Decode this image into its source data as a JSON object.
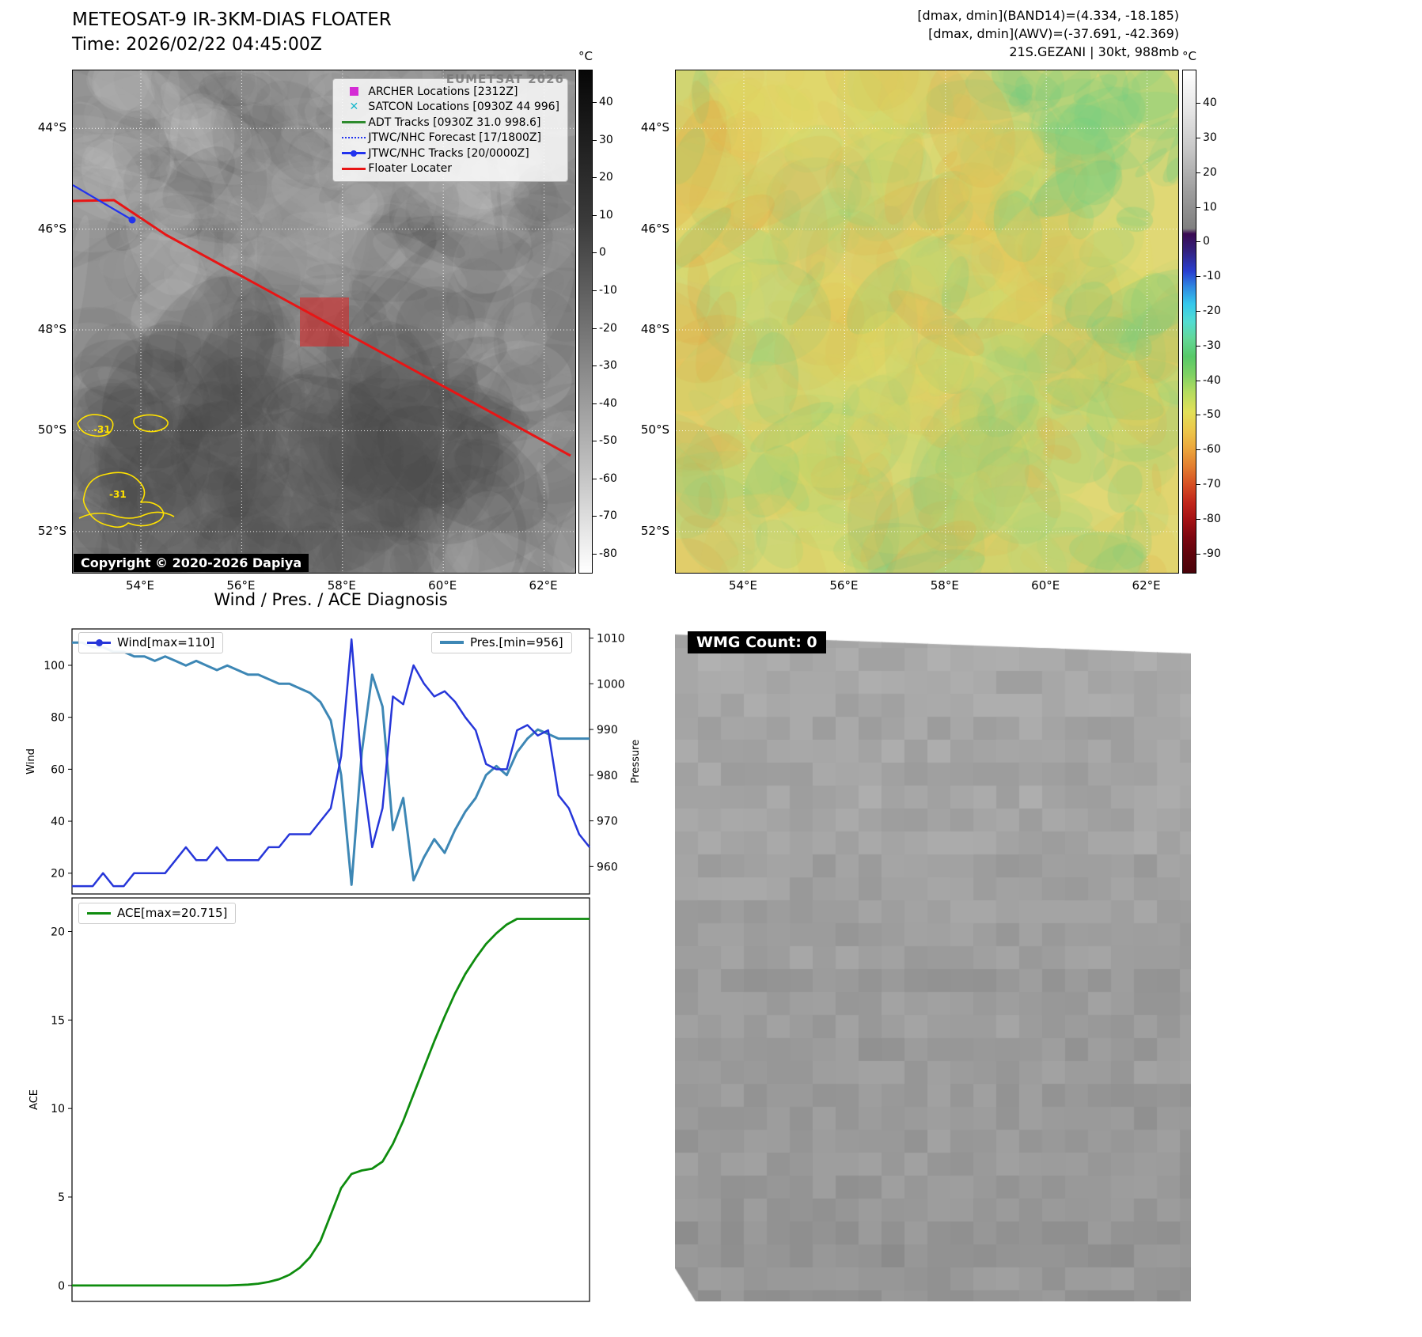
{
  "ir_panel": {
    "title": "METEOSAT-9 IR-3KM-DIAS FLOATER",
    "time_line": "Time: 2026/02/22 04:45:00Z",
    "watermark": "EUMETSAT 2026",
    "copyright": "Copyright © 2020-2026 Dapiya",
    "colorbar_unit": "°C",
    "colorbar_ticks": [
      "40",
      "30",
      "20",
      "10",
      "0",
      "-10",
      "-20",
      "-30",
      "-40",
      "-50",
      "-60",
      "-70",
      "-80"
    ],
    "lat_ticks": [
      "44°S",
      "46°S",
      "48°S",
      "50°S",
      "52°S"
    ],
    "lon_ticks": [
      "54°E",
      "56°E",
      "58°E",
      "60°E",
      "62°E"
    ],
    "contour_labels": [
      "-31",
      "-31"
    ],
    "contour_color": "#ffe100",
    "legend": [
      {
        "label": "ARCHER Locations [2312Z]",
        "marker": "square",
        "color": "#d42bd4"
      },
      {
        "label": "SATCON Locations [0930Z 44 996]",
        "marker": "x",
        "color": "#1ab8cc"
      },
      {
        "label": "ADT Tracks [0930Z 31.0 998.6]",
        "marker": "line",
        "color": "#2e8b2e"
      },
      {
        "label": "JTWC/NHC Forecast [17/1800Z]",
        "marker": "dotted",
        "color": "#2233ee"
      },
      {
        "label": "JTWC/NHC Tracks [20/0000Z]",
        "marker": "line-dot",
        "color": "#2233ee"
      },
      {
        "label": "Floater Locater",
        "marker": "line",
        "color": "#e81515"
      }
    ]
  },
  "awv_panel": {
    "header_lines": [
      "[dmax, dmin](BAND14)=(4.334, -18.185)",
      "[dmax, dmin](AWV)=(-37.691, -42.369)",
      "21S.GEZANI | 30kt, 988mb"
    ],
    "colorbar_unit": "°C",
    "colorbar_ticks": [
      "40",
      "30",
      "20",
      "10",
      "0",
      "-10",
      "-20",
      "-30",
      "-40",
      "-50",
      "-60",
      "-70",
      "-80",
      "-90"
    ],
    "lat_ticks": [
      "44°S",
      "46°S",
      "48°S",
      "50°S",
      "52°S"
    ],
    "lon_ticks": [
      "54°E",
      "56°E",
      "58°E",
      "60°E",
      "62°E"
    ]
  },
  "diagnosis": {
    "title": "Wind / Pres. / ACE Diagnosis"
  },
  "wmg_panel": {
    "label": "WMG Count: 0"
  },
  "chart_data": [
    {
      "type": "line",
      "title": "Wind / Pres. / ACE Diagnosis",
      "legend_position": "top",
      "grid": false,
      "series": [
        {
          "name": "Wind[max=110]",
          "yaxis": "left",
          "ylabel": "Wind",
          "yticks": [
            20,
            40,
            60,
            80,
            100
          ],
          "ylim": [
            12,
            114
          ],
          "color": "#2636d9",
          "values": [
            15,
            15,
            15,
            20,
            15,
            15,
            20,
            20,
            20,
            20,
            25,
            30,
            25,
            25,
            30,
            25,
            25,
            25,
            25,
            30,
            30,
            35,
            35,
            35,
            40,
            45,
            65,
            110,
            60,
            30,
            45,
            88,
            85,
            100,
            93,
            88,
            90,
            86,
            80,
            75,
            62,
            60,
            60,
            75,
            77,
            73,
            75,
            50,
            45,
            35,
            30
          ]
        },
        {
          "name": "Pres.[min=956]",
          "yaxis": "right",
          "ylabel": "Pressure",
          "yticks": [
            960,
            970,
            980,
            990,
            1000,
            1010
          ],
          "ylim": [
            954,
            1012
          ],
          "color": "#3d87b5",
          "values": [
            1009,
            1009,
            1008,
            1008,
            1007,
            1007,
            1006,
            1006,
            1005,
            1006,
            1005,
            1004,
            1005,
            1004,
            1003,
            1004,
            1003,
            1002,
            1002,
            1001,
            1000,
            1000,
            999,
            998,
            996,
            992,
            980,
            956,
            985,
            1002,
            995,
            968,
            975,
            957,
            962,
            966,
            963,
            968,
            972,
            975,
            980,
            982,
            980,
            985,
            988,
            990,
            989,
            988,
            988,
            988,
            988
          ]
        }
      ]
    },
    {
      "type": "line",
      "grid": false,
      "series": [
        {
          "name": "ACE[max=20.715]",
          "yaxis": "left",
          "ylabel": "ACE",
          "yticks": [
            0,
            5,
            10,
            15,
            20
          ],
          "ylim": [
            -0.9,
            21.9
          ],
          "color": "#0e8c0e",
          "values": [
            0,
            0,
            0,
            0,
            0,
            0,
            0,
            0,
            0,
            0,
            0,
            0,
            0,
            0,
            0,
            0,
            0.02,
            0.05,
            0.1,
            0.2,
            0.35,
            0.6,
            1.0,
            1.6,
            2.5,
            4.0,
            5.5,
            6.3,
            6.5,
            6.6,
            7.0,
            8.0,
            9.3,
            10.8,
            12.3,
            13.8,
            15.2,
            16.5,
            17.6,
            18.5,
            19.3,
            19.9,
            20.4,
            20.715,
            20.715,
            20.715,
            20.715,
            20.715,
            20.715,
            20.715,
            20.715
          ]
        }
      ]
    }
  ]
}
